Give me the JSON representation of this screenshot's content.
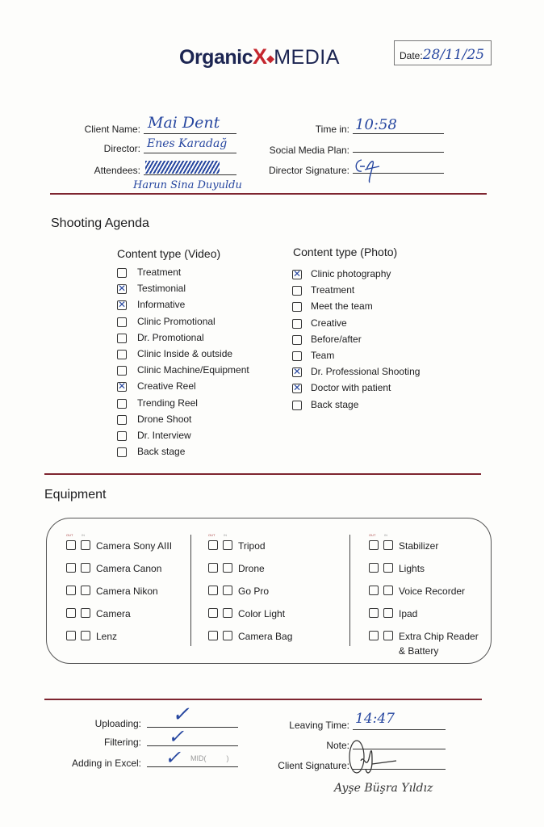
{
  "header": {
    "logo_text": "OrganicXMEDIA",
    "logo_part1": "Organic",
    "logo_x": "X",
    "logo_part2": "MEDIA",
    "date_label": "Date:",
    "date_value": "28/11/25"
  },
  "info": {
    "client_name_label": "Client Name:",
    "client_name_value": "Mai Dent",
    "director_label": "Director:",
    "director_value": "Enes Karadağ",
    "attendees_label": "Attendees:",
    "attendees_value": "Harun Sina Duyuldu",
    "time_in_label": "Time in:",
    "time_in_value": "10:58",
    "social_media_plan_label": "Social Media Plan:",
    "social_media_plan_value": "",
    "director_signature_label": "Director Signature:"
  },
  "agenda": {
    "title": "Shooting Agenda",
    "video": {
      "title": "Content type (Video)",
      "items": [
        {
          "label": "Treatment",
          "checked": false
        },
        {
          "label": "Testimonial",
          "checked": true
        },
        {
          "label": "Informative",
          "checked": true
        },
        {
          "label": "Clinic Promotional",
          "checked": false
        },
        {
          "label": "Dr. Promotional",
          "checked": false
        },
        {
          "label": "Clinic Inside & outside",
          "checked": false
        },
        {
          "label": "Clinic Machine/Equipment",
          "checked": false
        },
        {
          "label": "Creative Reel",
          "checked": true
        },
        {
          "label": "Trending Reel",
          "checked": false
        },
        {
          "label": "Drone Shoot",
          "checked": false
        },
        {
          "label": "Dr. Interview",
          "checked": false
        },
        {
          "label": "Back stage",
          "checked": false
        }
      ]
    },
    "photo": {
      "title": "Content type (Photo)",
      "items": [
        {
          "label": "Clinic photography",
          "checked": true
        },
        {
          "label": "Treatment",
          "checked": false
        },
        {
          "label": "Meet the team",
          "checked": false
        },
        {
          "label": "Creative",
          "checked": false
        },
        {
          "label": "Before/after",
          "checked": false
        },
        {
          "label": "Team",
          "checked": false
        },
        {
          "label": "Dr. Professional Shooting",
          "checked": true
        },
        {
          "label": "Doctor with patient",
          "checked": true
        },
        {
          "label": "Back stage",
          "checked": false
        }
      ]
    }
  },
  "equipment": {
    "title": "Equipment",
    "out_label": "OUT",
    "in_label": "IN",
    "columns": [
      [
        "Camera Sony AIII",
        "Camera Canon",
        "Camera Nikon",
        "Camera",
        "Lenz"
      ],
      [
        "Tripod",
        "Drone",
        "Go Pro",
        "Color Light",
        "Camera Bag"
      ],
      [
        "Stabilizer",
        "Lights",
        "Voice Recorder",
        "Ipad",
        "Extra Chip Reader & Battery"
      ]
    ]
  },
  "footer": {
    "uploading_label": "Uploading:",
    "uploading_value": "✓",
    "filtering_label": "Filtering:",
    "filtering_value": "✓",
    "excel_label": "Adding in Excel:",
    "excel_value": "✓",
    "excel_mid": "MID(          )",
    "leaving_time_label": "Leaving Time:",
    "leaving_time_value": "14:47",
    "note_label": "Note:",
    "client_signature_label": "Client Signature:",
    "client_signature_name": "Ayşe Büşra Yıldız"
  }
}
